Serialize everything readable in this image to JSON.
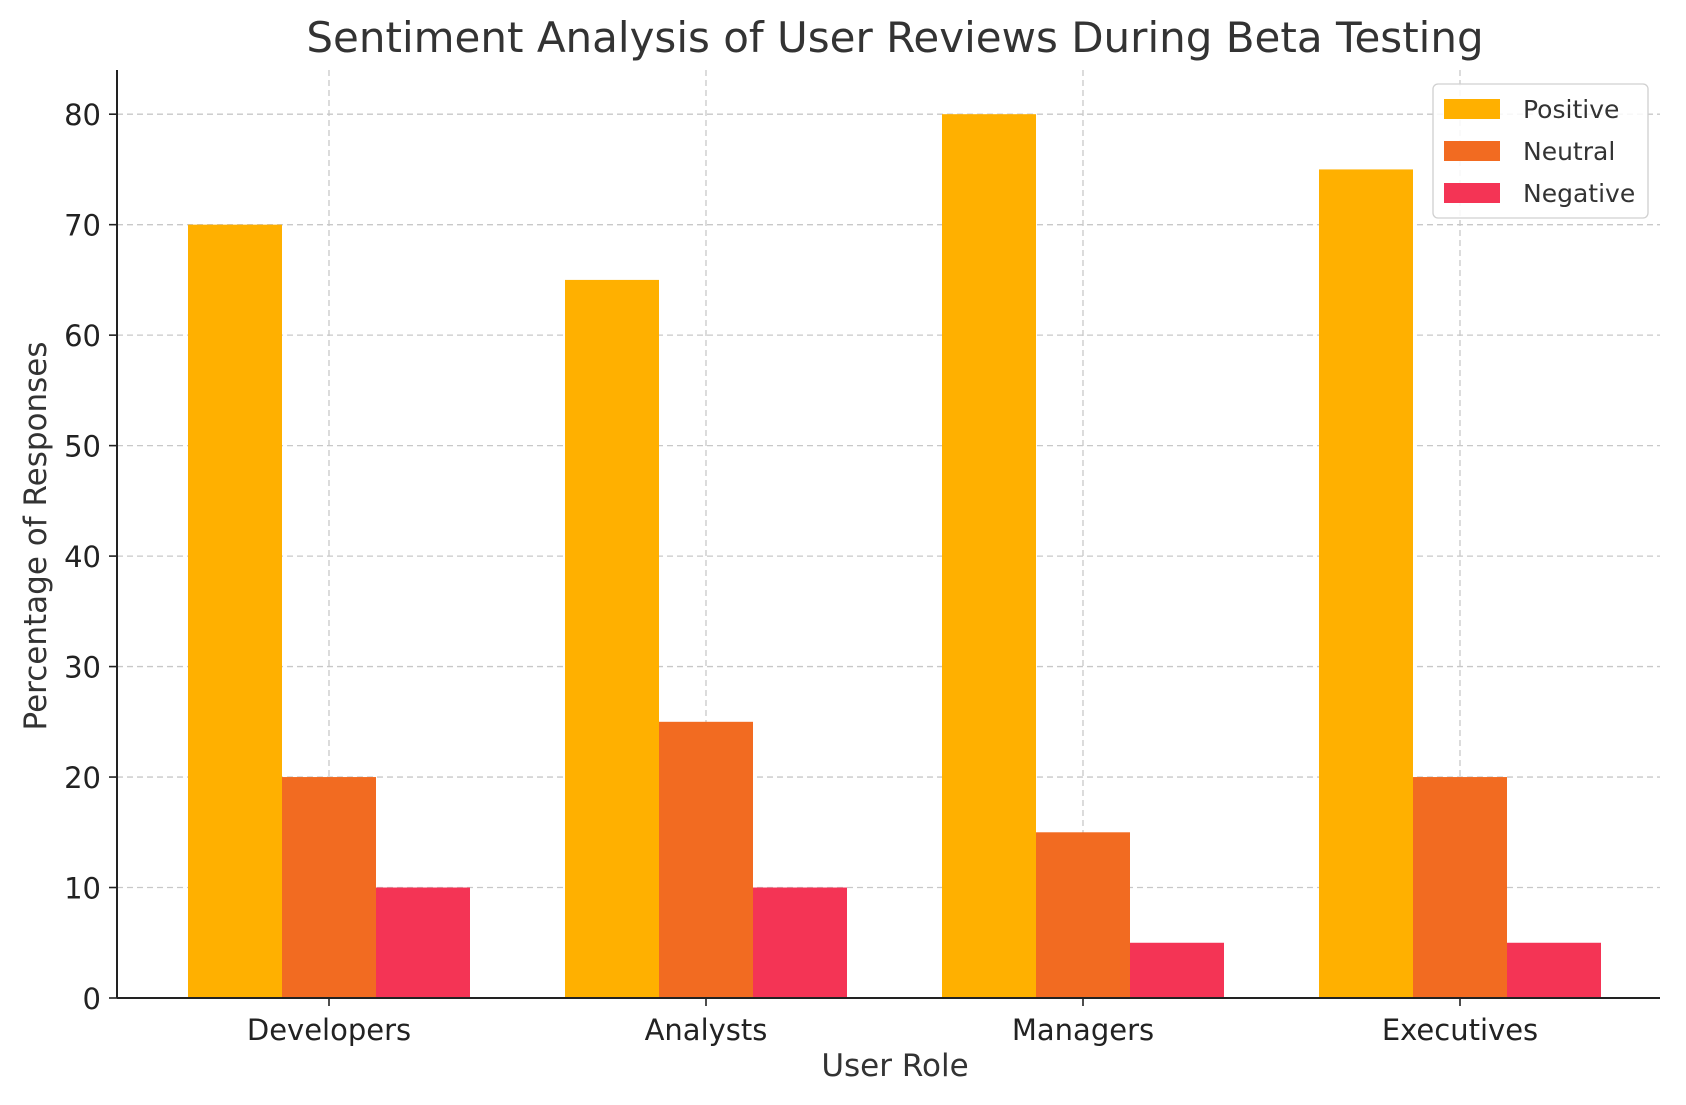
{
  "chart_data": {
    "type": "bar",
    "title": "Sentiment Analysis of User Reviews During Beta Testing",
    "xlabel": "User Role",
    "ylabel": "Percentage of Responses",
    "categories": [
      "Developers",
      "Analysts",
      "Managers",
      "Executives"
    ],
    "series": [
      {
        "name": "Positive",
        "color": "#FFB000",
        "values": [
          70,
          65,
          80,
          75
        ]
      },
      {
        "name": "Neutral",
        "color": "#F26B21",
        "values": [
          20,
          25,
          15,
          20
        ]
      },
      {
        "name": "Negative",
        "color": "#F43455",
        "values": [
          10,
          10,
          5,
          5
        ]
      }
    ],
    "ylim": [
      0,
      84
    ],
    "yticks": [
      0,
      10,
      20,
      30,
      40,
      50,
      60,
      70,
      80
    ],
    "grid": true,
    "legend_position": "top-right"
  }
}
